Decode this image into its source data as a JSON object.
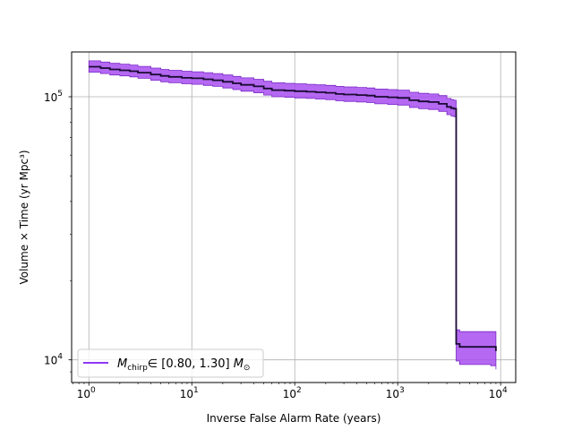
{
  "chart_data": {
    "type": "line",
    "title": "",
    "xlabel": "Inverse False Alarm Rate (years)",
    "ylabel": "Volume × Time (yr Mpc³)",
    "xscale": "log",
    "yscale": "log",
    "xlim": [
      0.68,
      14000
    ],
    "ylim": [
      8200,
      148000
    ],
    "xticks": [
      1,
      10,
      100,
      1000,
      10000
    ],
    "xtick_labels": [
      "10^0",
      "10^1",
      "10^2",
      "10^3",
      "10^4"
    ],
    "yticks": [
      10000,
      100000
    ],
    "ytick_labels": [
      "10^4",
      "10^5"
    ],
    "grid": true,
    "legend_position": "lower-left",
    "colors": {
      "line": "#1a0b33",
      "band": "#a84ff0",
      "band_edge": "#7a28c8",
      "legend_line": "#7f1cf5",
      "grid": "#b0b0b0"
    },
    "series": [
      {
        "name": "M_chirp ∈ [0.80, 1.30] M_⊙",
        "x": [
          1,
          1.3,
          1.6,
          2.0,
          2.5,
          3.0,
          4.0,
          5.0,
          6.0,
          8.0,
          10,
          13,
          16,
          20,
          25,
          30,
          40,
          50,
          60,
          80,
          100,
          130,
          160,
          200,
          250,
          300,
          400,
          500,
          600,
          800,
          1000,
          1300,
          1600,
          2000,
          2500,
          3000,
          3300,
          3500,
          3700,
          4000,
          5000,
          6000,
          7000,
          8000,
          9000
        ],
        "y": [
          130000,
          128500,
          127000,
          126000,
          125000,
          123500,
          121500,
          120000,
          119000,
          118000,
          117500,
          116500,
          115500,
          114000,
          112500,
          111000,
          109500,
          107500,
          106000,
          105500,
          105000,
          104500,
          104000,
          103500,
          102500,
          102000,
          101500,
          101000,
          100000,
          99500,
          99000,
          97000,
          96000,
          95500,
          94000,
          91500,
          90500,
          90000,
          11500,
          11200,
          11200,
          11200,
          11200,
          11200,
          10800
        ],
        "y_lower": [
          124000,
          122500,
          121000,
          120000,
          119000,
          117500,
          115500,
          114000,
          113000,
          112000,
          111500,
          110500,
          109500,
          108000,
          106500,
          105000,
          103500,
          101500,
          100000,
          99500,
          99000,
          98500,
          98000,
          97500,
          96500,
          96000,
          95500,
          95000,
          94000,
          93500,
          93000,
          91000,
          90000,
          89500,
          88000,
          85500,
          84500,
          84000,
          9900,
          9600,
          9600,
          9600,
          9600,
          9500,
          9200
        ],
        "y_upper": [
          137000,
          135500,
          134000,
          133000,
          132000,
          130500,
          128500,
          127000,
          126000,
          125000,
          124500,
          123500,
          122500,
          121000,
          119500,
          118000,
          116500,
          114500,
          113000,
          112500,
          112000,
          111500,
          111000,
          110500,
          109500,
          109000,
          108500,
          108000,
          107000,
          106500,
          106000,
          104000,
          103000,
          102500,
          101000,
          98500,
          97500,
          97000,
          13000,
          12800,
          12800,
          12800,
          12800,
          12800,
          12500
        ]
      }
    ]
  }
}
